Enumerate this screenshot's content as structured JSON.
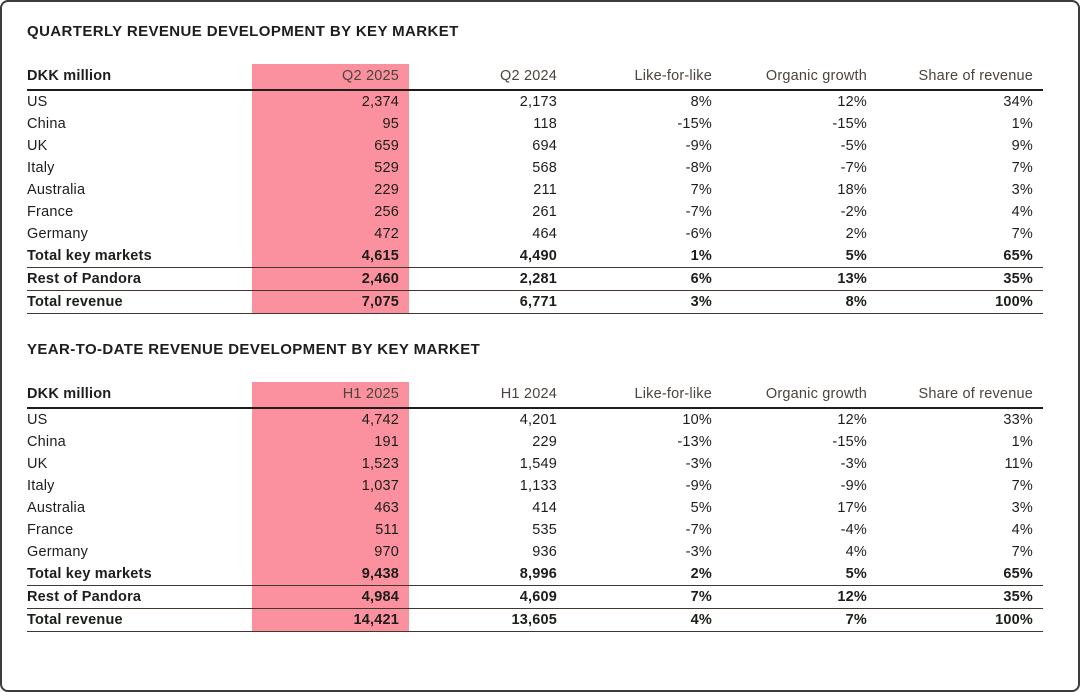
{
  "colors": {
    "highlight_pink": "#FB919E",
    "body_text": "#1D1D1B",
    "header_text": "#4B443E",
    "header_rule": "#1D1D1B",
    "total_rule": "#43362E",
    "frame_border": "#3C3C3C"
  },
  "tables": [
    {
      "title": "QUARTERLY REVENUE DEVELOPMENT BY KEY MARKET",
      "unit_label": "DKK million",
      "columns": [
        "Q2 2025",
        "Q2 2024",
        "Like-for-like",
        "Organic growth",
        "Share of revenue"
      ],
      "highlight_column_index": 0,
      "rows": [
        {
          "label": "US",
          "values": [
            "2,374",
            "2,173",
            "8%",
            "12%",
            "34%"
          ]
        },
        {
          "label": "China",
          "values": [
            "95",
            "118",
            "-15%",
            "-15%",
            "1%"
          ]
        },
        {
          "label": "UK",
          "values": [
            "659",
            "694",
            "-9%",
            "-5%",
            "9%"
          ]
        },
        {
          "label": "Italy",
          "values": [
            "529",
            "568",
            "-8%",
            "-7%",
            "7%"
          ]
        },
        {
          "label": "Australia",
          "values": [
            "229",
            "211",
            "7%",
            "18%",
            "3%"
          ]
        },
        {
          "label": "France",
          "values": [
            "256",
            "261",
            "-7%",
            "-2%",
            "4%"
          ]
        },
        {
          "label": "Germany",
          "values": [
            "472",
            "464",
            "-6%",
            "2%",
            "7%"
          ]
        }
      ],
      "total_rows": [
        {
          "label": "Total key markets",
          "values": [
            "4,615",
            "4,490",
            "1%",
            "5%",
            "65%"
          ]
        },
        {
          "label": "Rest of Pandora",
          "values": [
            "2,460",
            "2,281",
            "6%",
            "13%",
            "35%"
          ]
        },
        {
          "label": "Total revenue",
          "values": [
            "7,075",
            "6,771",
            "3%",
            "8%",
            "100%"
          ]
        }
      ]
    },
    {
      "title": "YEAR-TO-DATE REVENUE DEVELOPMENT BY KEY MARKET",
      "unit_label": "DKK million",
      "columns": [
        "H1 2025",
        "H1 2024",
        "Like-for-like",
        "Organic growth",
        "Share of revenue"
      ],
      "highlight_column_index": 0,
      "rows": [
        {
          "label": "US",
          "values": [
            "4,742",
            "4,201",
            "10%",
            "12%",
            "33%"
          ]
        },
        {
          "label": "China",
          "values": [
            "191",
            "229",
            "-13%",
            "-15%",
            "1%"
          ]
        },
        {
          "label": "UK",
          "values": [
            "1,523",
            "1,549",
            "-3%",
            "-3%",
            "11%"
          ]
        },
        {
          "label": "Italy",
          "values": [
            "1,037",
            "1,133",
            "-9%",
            "-9%",
            "7%"
          ]
        },
        {
          "label": "Australia",
          "values": [
            "463",
            "414",
            "5%",
            "17%",
            "3%"
          ]
        },
        {
          "label": "France",
          "values": [
            "511",
            "535",
            "-7%",
            "-4%",
            "4%"
          ]
        },
        {
          "label": "Germany",
          "values": [
            "970",
            "936",
            "-3%",
            "4%",
            "7%"
          ]
        }
      ],
      "total_rows": [
        {
          "label": "Total key markets",
          "values": [
            "9,438",
            "8,996",
            "2%",
            "5%",
            "65%"
          ]
        },
        {
          "label": "Rest of Pandora",
          "values": [
            "4,984",
            "4,609",
            "7%",
            "12%",
            "35%"
          ]
        },
        {
          "label": "Total revenue",
          "values": [
            "14,421",
            "13,605",
            "4%",
            "7%",
            "100%"
          ]
        }
      ]
    }
  ]
}
